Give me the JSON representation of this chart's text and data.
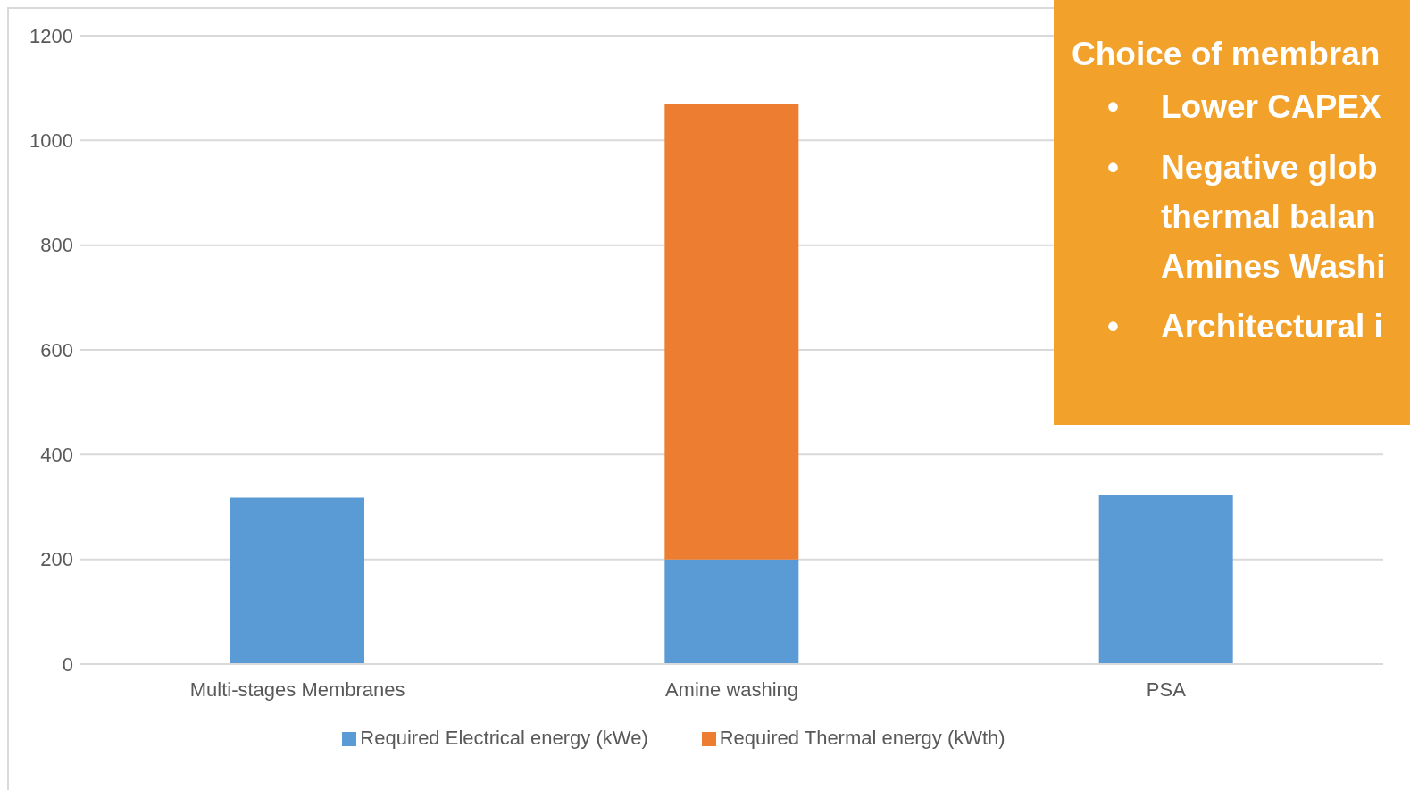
{
  "chart_data": {
    "type": "bar",
    "stacked": true,
    "categories": [
      "Multi-stages Membranes",
      "Amine washing",
      "PSA"
    ],
    "series": [
      {
        "name": "Required Electrical energy (kWe)",
        "color": "#5b9bd5",
        "values": [
          318,
          200,
          322
        ]
      },
      {
        "name": "Required Thermal energy (kWth)",
        "color": "#ed7d31",
        "values": [
          0,
          869,
          0
        ]
      }
    ],
    "ylim": [
      0,
      1200
    ],
    "yticks": [
      0,
      200,
      400,
      600,
      800,
      1000,
      1200
    ],
    "grid": "y",
    "legend": "bottom",
    "annotations": [
      "Choice of membran",
      "•\tLower CAPEX",
      "•\tNegative glob\n\tthermal balan\n\tAmines Washi",
      "•\tArchitectural i"
    ]
  }
}
